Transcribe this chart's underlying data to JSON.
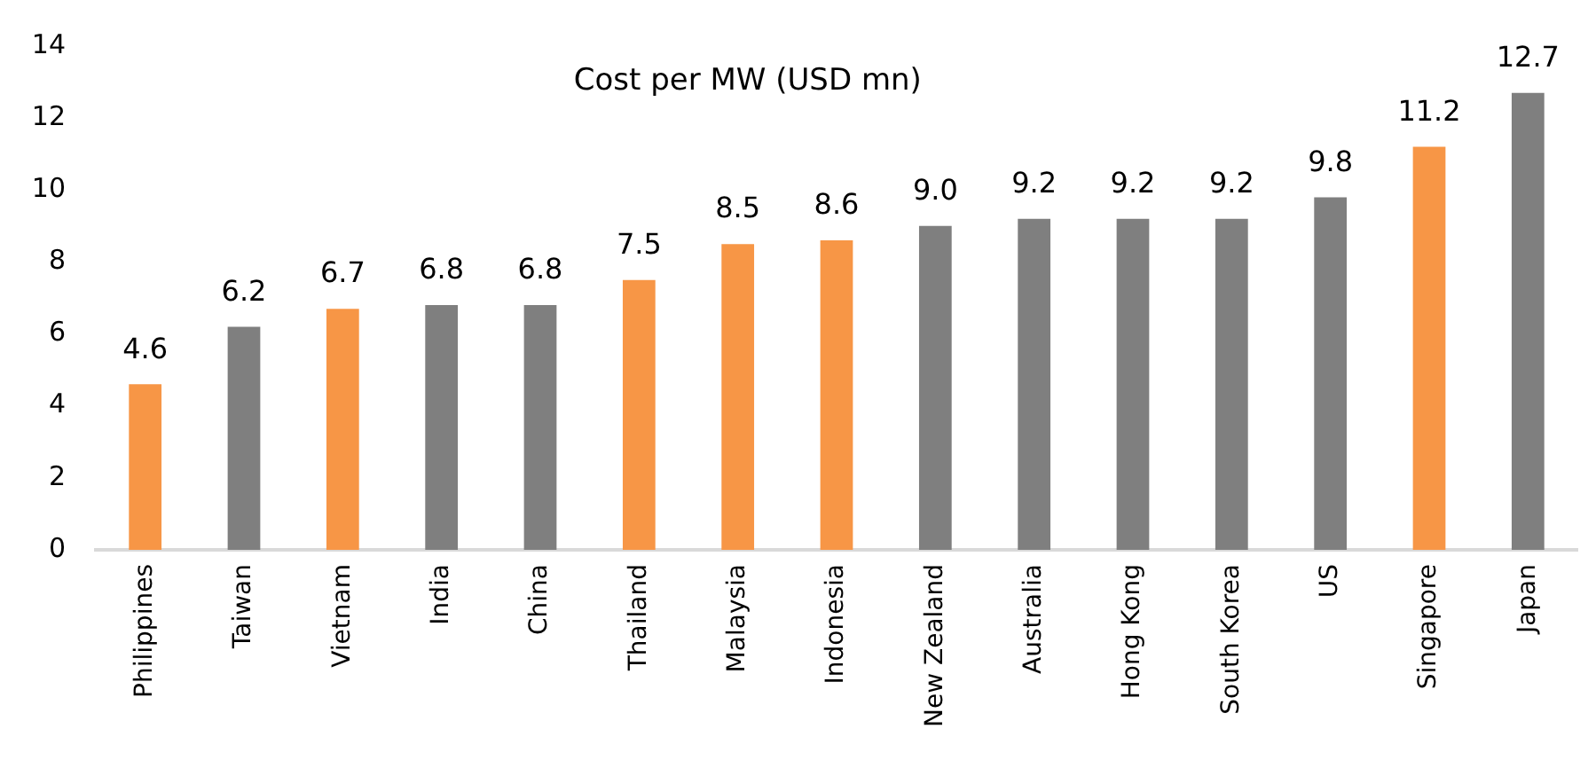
{
  "chart_data": {
    "type": "bar",
    "title": "Cost per MW (USD mn)",
    "categories": [
      "Philippines",
      "Taiwan",
      "Vietnam",
      "India",
      "China",
      "Thailand",
      "Malaysia",
      "Indonesia",
      "New Zealand",
      "Australia",
      "Hong Kong",
      "South Korea",
      "US",
      "Singapore",
      "Japan"
    ],
    "values": [
      4.6,
      6.2,
      6.7,
      6.8,
      6.8,
      7.5,
      8.5,
      8.6,
      9.0,
      9.2,
      9.2,
      9.2,
      9.8,
      11.2,
      12.7
    ],
    "value_labels": [
      "4.6",
      "6.2",
      "6.7",
      "6.8",
      "6.8",
      "7.5",
      "8.5",
      "8.6",
      "9.0",
      "9.2",
      "9.2",
      "9.2",
      "9.8",
      "11.2",
      "12.7"
    ],
    "colors": [
      "#f79646",
      "#7f7f7f",
      "#f79646",
      "#7f7f7f",
      "#7f7f7f",
      "#f79646",
      "#f79646",
      "#f79646",
      "#7f7f7f",
      "#7f7f7f",
      "#7f7f7f",
      "#7f7f7f",
      "#7f7f7f",
      "#f79646",
      "#7f7f7f"
    ],
    "ylim": [
      0,
      14
    ],
    "yticks": [
      0,
      2,
      4,
      6,
      8,
      10,
      12,
      14
    ]
  }
}
